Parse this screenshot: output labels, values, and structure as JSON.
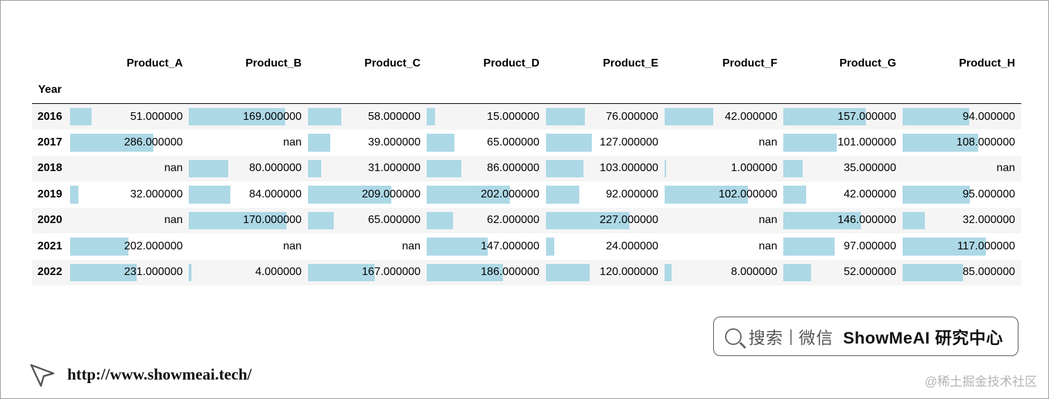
{
  "table": {
    "index_name": "Year",
    "columns": [
      "Product_A",
      "Product_B",
      "Product_C",
      "Product_D",
      "Product_E",
      "Product_F",
      "Product_G",
      "Product_H"
    ],
    "rows": [
      {
        "year": "2016",
        "values": [
          "51.000000",
          "169.000000",
          "58.000000",
          "15.000000",
          "76.000000",
          "42.000000",
          "157.000000",
          "94.000000"
        ],
        "bars": [
          0.18,
          0.81,
          0.28,
          0.07,
          0.33,
          0.41,
          0.69,
          0.56
        ]
      },
      {
        "year": "2017",
        "values": [
          "286.000000",
          "nan",
          "39.000000",
          "65.000000",
          "127.000000",
          "nan",
          "101.000000",
          "108.000000"
        ],
        "bars": [
          0.7,
          0,
          0.19,
          0.23,
          0.39,
          0,
          0.45,
          0.64
        ]
      },
      {
        "year": "2018",
        "values": [
          "nan",
          "80.000000",
          "31.000000",
          "86.000000",
          "103.000000",
          "1.000000",
          "35.000000",
          "nan"
        ],
        "bars": [
          0,
          0.33,
          0.11,
          0.29,
          0.32,
          0.01,
          0.16,
          0
        ]
      },
      {
        "year": "2019",
        "values": [
          "32.000000",
          "84.000000",
          "209.000000",
          "202.000000",
          "92.000000",
          "102.000000",
          "42.000000",
          "95.000000"
        ],
        "bars": [
          0.07,
          0.35,
          0.7,
          0.7,
          0.28,
          0.7,
          0.19,
          0.57
        ]
      },
      {
        "year": "2020",
        "values": [
          "nan",
          "170.000000",
          "65.000000",
          "62.000000",
          "227.000000",
          "nan",
          "146.000000",
          "32.000000"
        ],
        "bars": [
          0,
          0.82,
          0.22,
          0.22,
          0.7,
          0,
          0.65,
          0.19
        ]
      },
      {
        "year": "2021",
        "values": [
          "202.000000",
          "nan",
          "nan",
          "147.000000",
          "24.000000",
          "nan",
          "97.000000",
          "117.000000"
        ],
        "bars": [
          0.49,
          0,
          0,
          0.51,
          0.07,
          0,
          0.43,
          0.7
        ]
      },
      {
        "year": "2022",
        "values": [
          "231.000000",
          "4.000000",
          "167.000000",
          "186.000000",
          "120.000000",
          "8.000000",
          "52.000000",
          "85.000000"
        ],
        "bars": [
          0.56,
          0.02,
          0.56,
          0.64,
          0.37,
          0.06,
          0.23,
          0.51
        ]
      }
    ],
    "bar_color": "#add8e6",
    "stripe_color": "#f5f5f5"
  },
  "search": {
    "text": "搜索",
    "separator": "|",
    "text2": "微信",
    "brand": "ShowMeAI 研究中心"
  },
  "footer": {
    "url": "http://www.showmeai.tech/",
    "watermark": "@稀土掘金技术社区"
  }
}
